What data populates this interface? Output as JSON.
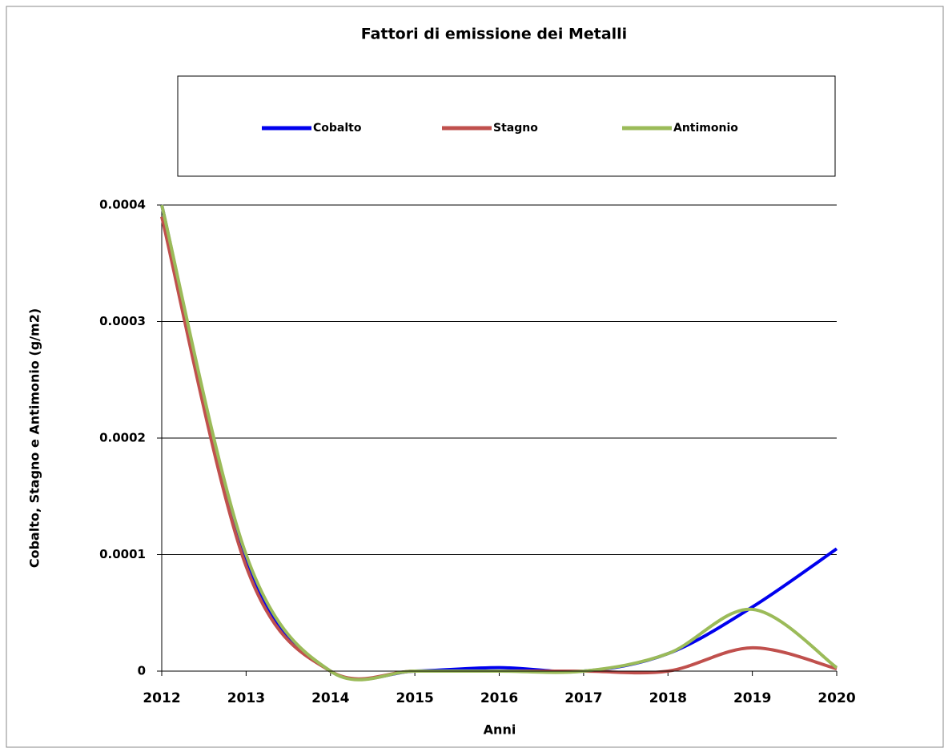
{
  "chart_data": {
    "type": "line",
    "title": "Fattori di emissione dei Metalli",
    "x_label": "Anni",
    "y_label": "Cobalto, Stagno e Antimonio (g/m2)",
    "categories": [
      "2012",
      "2013",
      "2014",
      "2015",
      "2016",
      "2017",
      "2018",
      "2019",
      "2020"
    ],
    "series": [
      {
        "name": "Cobalto",
        "color": "#0000ee",
        "values": [
          0.0004,
          9.5e-05,
          0,
          0,
          3e-06,
          0,
          1.5e-05,
          5.5e-05,
          0.000105
        ]
      },
      {
        "name": "Stagno",
        "color": "#c0504d",
        "values": [
          0.00039,
          9e-05,
          0,
          0,
          0,
          0,
          0,
          2e-05,
          2e-06
        ]
      },
      {
        "name": "Antimonio",
        "color": "#9bbb59",
        "values": [
          0.0004,
          0.0001,
          0,
          0,
          0,
          0,
          1.5e-05,
          5.3e-05,
          3e-06
        ]
      }
    ],
    "ylim": [
      0,
      0.0004
    ],
    "yticks": [
      0,
      0.0001,
      0.0002,
      0.0003,
      0.0004
    ],
    "grid": true,
    "smooth": true,
    "legend": "top"
  }
}
